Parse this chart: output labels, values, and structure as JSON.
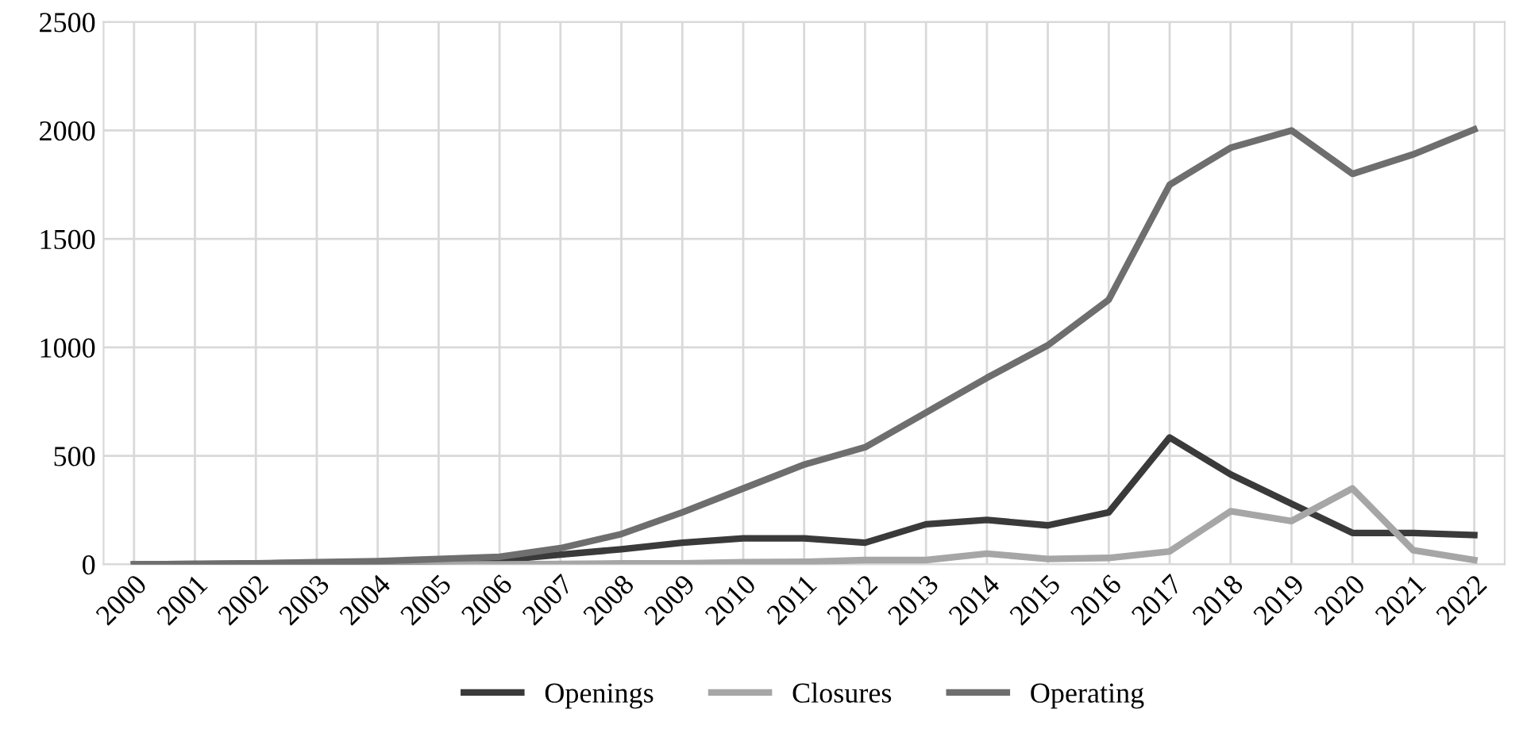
{
  "chart_data": {
    "type": "line",
    "categories": [
      "2000",
      "2001",
      "2002",
      "2003",
      "2004",
      "2005",
      "2006",
      "2007",
      "2008",
      "2009",
      "2010",
      "2011",
      "2012",
      "2013",
      "2014",
      "2015",
      "2016",
      "2017",
      "2018",
      "2019",
      "2020",
      "2021",
      "2022"
    ],
    "series": [
      {
        "name": "Openings",
        "color": "#3a3a3a",
        "values": [
          0,
          2,
          4,
          8,
          10,
          15,
          20,
          45,
          70,
          100,
          120,
          120,
          100,
          185,
          205,
          180,
          240,
          585,
          415,
          280,
          145,
          145,
          135
        ]
      },
      {
        "name": "Closures",
        "color": "#a6a6a6",
        "values": [
          0,
          0,
          0,
          0,
          0,
          0,
          0,
          2,
          5,
          5,
          10,
          12,
          20,
          20,
          50,
          25,
          30,
          60,
          245,
          200,
          350,
          65,
          20
        ]
      },
      {
        "name": "Operating",
        "color": "#6e6e6e",
        "values": [
          0,
          2,
          5,
          10,
          15,
          25,
          35,
          75,
          140,
          240,
          350,
          460,
          540,
          700,
          860,
          1010,
          1220,
          1750,
          1920,
          2000,
          1800,
          1890,
          2005
        ]
      }
    ],
    "ylim": [
      0,
      2500
    ],
    "yticks": [
      0,
      500,
      1000,
      1500,
      2000,
      2500
    ],
    "grid": true,
    "legend": "bottom",
    "marker": "none",
    "line_style": "solid"
  }
}
